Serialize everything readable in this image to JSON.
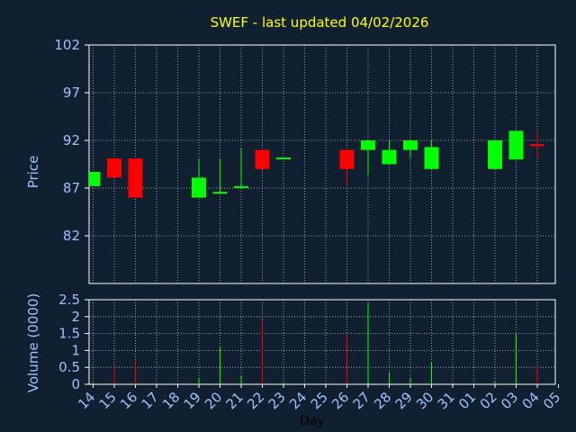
{
  "chart_data": [
    {
      "type": "candlestick",
      "title": "SWEF - last updated 04/02/2026",
      "ylabel": "Price",
      "ylim": [
        77,
        102
      ],
      "yticks": [
        82,
        87,
        92,
        97,
        102
      ],
      "grid": true,
      "colors": {
        "up": "#00ff00",
        "down": "#ff0000",
        "title": "#ffff00",
        "label": "#a0c0ff",
        "axis": "#ffffff"
      },
      "candles": [
        {
          "day": "14",
          "open": 87.2,
          "close": 88.7,
          "high": 88.7,
          "low": 87.2
        },
        {
          "day": "15",
          "open": 90.1,
          "close": 88.1,
          "high": 90.1,
          "low": 88.1
        },
        {
          "day": "16",
          "open": 90.1,
          "close": 86.0,
          "high": 90.1,
          "low": 86.0
        },
        {
          "day": "19",
          "open": 86.0,
          "close": 88.1,
          "high": 90.1,
          "low": 86.0
        },
        {
          "day": "20",
          "open": 86.5,
          "close": 86.6,
          "high": 90.1,
          "low": 86.5
        },
        {
          "day": "21",
          "open": 87.1,
          "close": 87.2,
          "high": 91.2,
          "low": 87.1
        },
        {
          "day": "22",
          "open": 91.0,
          "close": 89.0,
          "high": 91.0,
          "low": 89.0
        },
        {
          "day": "23",
          "open": 90.1,
          "close": 90.2,
          "high": 90.2,
          "low": 90.1
        },
        {
          "day": "26",
          "open": 91.0,
          "close": 89.0,
          "high": 91.0,
          "low": 87.2
        },
        {
          "day": "27",
          "open": 91.0,
          "close": 92.0,
          "high": 92.0,
          "low": 88.3
        },
        {
          "day": "28",
          "open": 89.5,
          "close": 91.0,
          "high": 92.0,
          "low": 89.5
        },
        {
          "day": "29",
          "open": 91.0,
          "close": 92.0,
          "high": 92.0,
          "low": 90.2
        },
        {
          "day": "30",
          "open": 89.0,
          "close": 91.3,
          "high": 92.0,
          "low": 89.0
        },
        {
          "day": "02",
          "open": 89.0,
          "close": 92.0,
          "high": 92.0,
          "low": 89.0
        },
        {
          "day": "03",
          "open": 90.0,
          "close": 93.0,
          "high": 93.0,
          "low": 90.0
        },
        {
          "day": "04",
          "open": 91.6,
          "close": 91.5,
          "high": 92.8,
          "low": 90.2
        }
      ]
    },
    {
      "type": "bar",
      "ylabel": "Volume (0000)",
      "xlabel": "Day",
      "ylim": [
        0,
        2.5
      ],
      "yticks": [
        "0",
        "0.5",
        "1",
        "1.5",
        "2",
        "2.5"
      ],
      "grid": true,
      "categories": [
        "14",
        "15",
        "16",
        "17",
        "18",
        "19",
        "20",
        "21",
        "22",
        "23",
        "24",
        "25",
        "26",
        "27",
        "28",
        "29",
        "30",
        "31",
        "01",
        "02",
        "03",
        "04",
        "05"
      ],
      "series": [
        {
          "values": [
            0.05,
            0.5,
            0.7,
            0,
            0,
            0.2,
            1.1,
            0.25,
            1.9,
            0.05,
            0,
            0,
            1.45,
            2.4,
            0.35,
            0.2,
            0.65,
            0,
            0,
            0.1,
            1.5,
            0.5,
            0
          ],
          "colors": [
            "#00ff00",
            "#ff0000",
            "#ff0000",
            "#00ff00",
            "#00ff00",
            "#00ff00",
            "#00ff00",
            "#00ff00",
            "#ff0000",
            "#00ff00",
            "#00ff00",
            "#00ff00",
            "#ff0000",
            "#00ff00",
            "#00ff00",
            "#00ff00",
            "#00ff00",
            "#00ff00",
            "#00ff00",
            "#00ff00",
            "#00ff00",
            "#ff0000",
            "#00ff00"
          ]
        }
      ]
    }
  ]
}
